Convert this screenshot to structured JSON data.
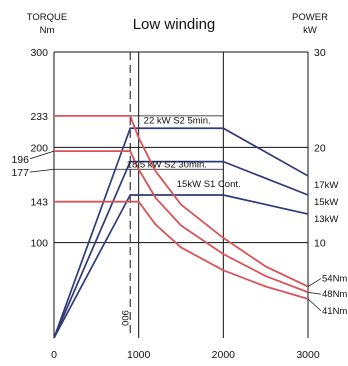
{
  "chart_data": {
    "type": "line",
    "title": "Low winding",
    "left_axis_header": [
      "TORQUE",
      "Nm"
    ],
    "right_axis_header": [
      "POWER",
      "kW"
    ],
    "x_ticks": [
      "0",
      "1000",
      "2000",
      "3000"
    ],
    "xlim": [
      0,
      3000
    ],
    "ylim": [
      0,
      300
    ],
    "y_left_ticks": [
      "100",
      "200",
      "300"
    ],
    "y_right_ticks": [
      "10",
      "20",
      "30"
    ],
    "torque_callouts": [
      "233",
      "196",
      "200",
      "177",
      "143"
    ],
    "base_speed_label": "900",
    "base_speed": 900,
    "grid": true,
    "power_series": [
      {
        "name": "22 kW S2 5min.",
        "end_label": "17kW",
        "x": [
          0,
          900,
          2000,
          3000
        ],
        "y": [
          0,
          22,
          22,
          17
        ]
      },
      {
        "name": "18.5 kW S2 30min.",
        "end_label": "15kW",
        "x": [
          0,
          900,
          2000,
          3000
        ],
        "y": [
          0,
          18.5,
          18.5,
          15
        ]
      },
      {
        "name": "15kW S1 Cont.",
        "end_label": "13kW",
        "x": [
          0,
          900,
          2000,
          3000
        ],
        "y": [
          0,
          15,
          15,
          13
        ]
      }
    ],
    "torque_series": [
      {
        "end_label": "54Nm",
        "x": [
          0,
          900,
          1000,
          1200,
          1500,
          2000,
          2500,
          3000
        ],
        "y": [
          233,
          233,
          210,
          175,
          140,
          105,
          75,
          54
        ]
      },
      {
        "end_label": "48Nm",
        "x": [
          0,
          900,
          1000,
          1200,
          1500,
          2000,
          2500,
          3000
        ],
        "y": [
          196,
          196,
          177,
          147,
          118,
          88,
          65,
          48
        ]
      },
      {
        "end_label": "41Nm",
        "x": [
          0,
          900,
          1000,
          1200,
          1500,
          2000,
          2500,
          3000
        ],
        "y": [
          143,
          143,
          143,
          119,
          95,
          71,
          54,
          41
        ]
      }
    ],
    "colors": {
      "torque": "#d9545a",
      "power": "#2f3a78",
      "grid": "#111111",
      "rated_line": "#111111"
    }
  }
}
